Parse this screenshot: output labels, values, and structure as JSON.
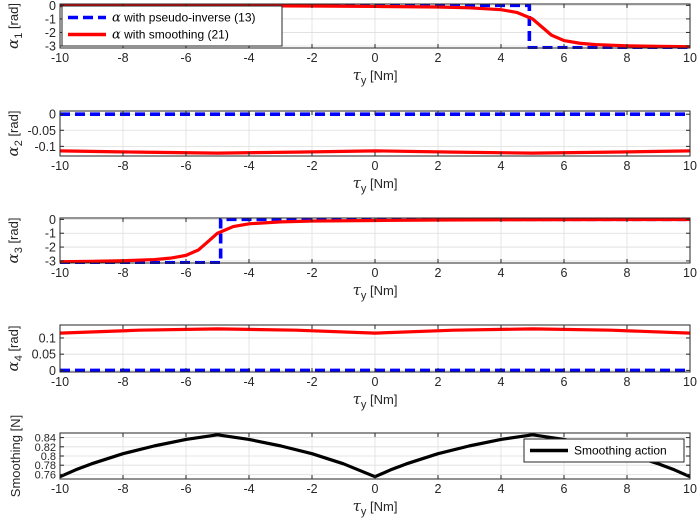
{
  "colors": {
    "pseudo_inverse": "#0000ff",
    "smoothing": "#ff0000",
    "smoothing_action": "#000000",
    "grid": "#dedede",
    "axis": "#262626"
  },
  "chart_data": [
    {
      "type": "line",
      "name": "alpha1",
      "xlabel_main": "τ",
      "xlabel_sub": "y",
      "xlabel_unit": " [Nm]",
      "ylabel_main": "α",
      "ylabel_sub": "1",
      "ylabel_unit": " [rad]",
      "xlim": [
        -10,
        10
      ],
      "ylim": [
        -3.15,
        0.1
      ],
      "xticks": [
        -10,
        -8,
        -6,
        -4,
        -2,
        0,
        2,
        4,
        6,
        8,
        10
      ],
      "xtick_labels": [
        "-10",
        "-8",
        "-6",
        "-4",
        "-2",
        "0",
        "2",
        "4",
        "6",
        "8",
        "10"
      ],
      "yticks": [
        0,
        -1,
        -2,
        -3
      ],
      "ytick_labels": [
        "0",
        "-1",
        "-2",
        "-3"
      ],
      "grid": true,
      "legend": {
        "position": "top-left",
        "entries": [
          {
            "main": "α",
            "rest": " with pseudo-inverse (13)",
            "series": "pseudo_inverse",
            "style": "dashed"
          },
          {
            "main": "α",
            "rest": " with smoothing (21)",
            "series": "smoothing",
            "style": "solid"
          }
        ]
      },
      "series": [
        {
          "name": "pseudo_inverse",
          "style": "dashed",
          "x": [
            -10,
            4.9,
            4.9,
            10
          ],
          "y": [
            0,
            0,
            -3.14,
            -3.14
          ]
        },
        {
          "name": "smoothing",
          "style": "solid",
          "x": [
            -10,
            -6,
            -4,
            -2,
            0,
            2,
            3,
            4,
            4.5,
            5,
            5.3,
            5.6,
            6,
            6.5,
            7,
            8,
            9,
            10
          ],
          "y": [
            -0.01,
            -0.02,
            -0.03,
            -0.05,
            -0.08,
            -0.12,
            -0.18,
            -0.32,
            -0.52,
            -1.0,
            -1.6,
            -2.2,
            -2.6,
            -2.8,
            -2.9,
            -2.99,
            -3.03,
            -3.06
          ]
        }
      ]
    },
    {
      "type": "line",
      "name": "alpha2",
      "xlabel_main": "τ",
      "xlabel_sub": "y",
      "xlabel_unit": " [Nm]",
      "ylabel_main": "α",
      "ylabel_sub": "2",
      "ylabel_unit": " [rad]",
      "xlim": [
        -10,
        10
      ],
      "ylim": [
        -0.13,
        0.01
      ],
      "xticks": [
        -10,
        -8,
        -6,
        -4,
        -2,
        0,
        2,
        4,
        6,
        8,
        10
      ],
      "xtick_labels": [
        "-10",
        "-8",
        "-6",
        "-4",
        "-2",
        "0",
        "2",
        "4",
        "6",
        "8",
        "10"
      ],
      "yticks": [
        0,
        -0.05,
        -0.1
      ],
      "ytick_labels": [
        "0",
        "-0.05",
        "-0.1"
      ],
      "grid": true,
      "series": [
        {
          "name": "pseudo_inverse",
          "style": "dashed",
          "x": [
            -10,
            10
          ],
          "y": [
            0,
            0
          ]
        },
        {
          "name": "smoothing",
          "style": "solid",
          "x": [
            -10,
            -7.5,
            -5,
            -2.5,
            0,
            2.5,
            5,
            7.5,
            10
          ],
          "y": [
            -0.114,
            -0.118,
            -0.121,
            -0.118,
            -0.114,
            -0.118,
            -0.121,
            -0.118,
            -0.114
          ]
        }
      ]
    },
    {
      "type": "line",
      "name": "alpha3",
      "xlabel_main": "τ",
      "xlabel_sub": "y",
      "xlabel_unit": " [Nm]",
      "ylabel_main": "α",
      "ylabel_sub": "3",
      "ylabel_unit": " [rad]",
      "xlim": [
        -10,
        10
      ],
      "ylim": [
        -3.15,
        0.1
      ],
      "xticks": [
        -10,
        -8,
        -6,
        -4,
        -2,
        0,
        2,
        4,
        6,
        8,
        10
      ],
      "xtick_labels": [
        "-10",
        "-8",
        "-6",
        "-4",
        "-2",
        "0",
        "2",
        "4",
        "6",
        "8",
        "10"
      ],
      "yticks": [
        0,
        -1,
        -2,
        -3
      ],
      "ytick_labels": [
        "0",
        "-1",
        "-2",
        "-3"
      ],
      "grid": true,
      "series": [
        {
          "name": "pseudo_inverse",
          "style": "dashed",
          "x": [
            -10,
            -4.9,
            -4.9,
            10
          ],
          "y": [
            -3.14,
            -3.14,
            0,
            0
          ]
        },
        {
          "name": "smoothing",
          "style": "solid",
          "x": [
            -10,
            -9,
            -8,
            -7,
            -6.5,
            -6,
            -5.6,
            -5.3,
            -5,
            -4.5,
            -4,
            -3,
            -2,
            0,
            2,
            4,
            6,
            10
          ],
          "y": [
            -3.06,
            -3.03,
            -2.99,
            -2.9,
            -2.8,
            -2.6,
            -2.2,
            -1.6,
            -1.0,
            -0.52,
            -0.32,
            -0.18,
            -0.12,
            -0.08,
            -0.05,
            -0.03,
            -0.02,
            -0.01
          ]
        }
      ]
    },
    {
      "type": "line",
      "name": "alpha4",
      "xlabel_main": "τ",
      "xlabel_sub": "y",
      "xlabel_unit": " [Nm]",
      "ylabel_main": "α",
      "ylabel_sub": "4",
      "ylabel_unit": " [rad]",
      "xlim": [
        -10,
        10
      ],
      "ylim": [
        -0.005,
        0.14
      ],
      "xticks": [
        -10,
        -8,
        -6,
        -4,
        -2,
        0,
        2,
        4,
        6,
        8,
        10
      ],
      "xtick_labels": [
        "-10",
        "-8",
        "-6",
        "-4",
        "-2",
        "0",
        "2",
        "4",
        "6",
        "8",
        "10"
      ],
      "yticks": [
        0,
        0.05,
        0.1
      ],
      "ytick_labels": [
        "0",
        "0.05",
        "0.1"
      ],
      "grid": true,
      "series": [
        {
          "name": "pseudo_inverse",
          "style": "dashed",
          "x": [
            -10,
            10
          ],
          "y": [
            0,
            0
          ]
        },
        {
          "name": "smoothing",
          "style": "solid",
          "x": [
            -10,
            -7.5,
            -5,
            -2.5,
            0,
            2.5,
            5,
            7.5,
            10
          ],
          "y": [
            0.115,
            0.124,
            0.128,
            0.124,
            0.115,
            0.124,
            0.128,
            0.124,
            0.115
          ]
        }
      ]
    },
    {
      "type": "line",
      "name": "smoothing",
      "xlabel_main": "τ",
      "xlabel_sub": "y",
      "xlabel_unit": " [Nm]",
      "ylabel_text": "Smoothing [N]",
      "xlim": [
        -10,
        10
      ],
      "ylim": [
        0.75,
        0.85
      ],
      "xticks": [
        -10,
        -8,
        -6,
        -4,
        -2,
        0,
        2,
        4,
        6,
        8,
        10
      ],
      "xtick_labels": [
        "-10",
        "-8",
        "-6",
        "-4",
        "-2",
        "0",
        "2",
        "4",
        "6",
        "8",
        "10"
      ],
      "yticks": [
        0.76,
        0.78,
        0.8,
        0.82,
        0.84
      ],
      "ytick_labels": [
        "0.76",
        "0.78",
        "0.8",
        "0.82",
        "0.84"
      ],
      "grid": true,
      "legend": {
        "position": "top-right",
        "entries": [
          {
            "main": "Smoothing action",
            "rest": "",
            "series": "smoothing_action",
            "style": "solid"
          }
        ]
      },
      "series": [
        {
          "name": "smoothing_action",
          "style": "solid",
          "x": [
            -10,
            -9.5,
            -9,
            -8,
            -7,
            -6,
            -5,
            -4,
            -3,
            -2,
            -1,
            0,
            0.5,
            1,
            2,
            3,
            4,
            5,
            6,
            7,
            8,
            9,
            9.5,
            10
          ],
          "y": [
            0.755,
            0.77,
            0.783,
            0.805,
            0.822,
            0.836,
            0.846,
            0.836,
            0.822,
            0.805,
            0.783,
            0.755,
            0.77,
            0.783,
            0.805,
            0.822,
            0.836,
            0.846,
            0.836,
            0.822,
            0.805,
            0.783,
            0.77,
            0.755
          ]
        }
      ]
    }
  ]
}
